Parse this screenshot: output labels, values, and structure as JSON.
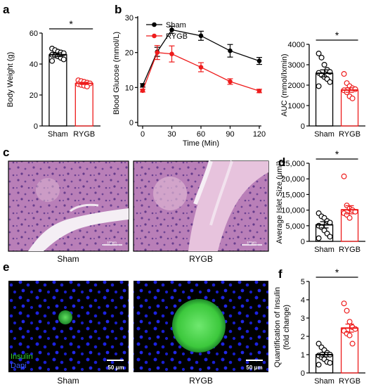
{
  "panels": {
    "a": {
      "letter": "a"
    },
    "b": {
      "letter": "b"
    },
    "c": {
      "letter": "c",
      "captions": [
        "Sham",
        "RYGB"
      ],
      "scalebar": "100μm"
    },
    "d": {
      "letter": "d"
    },
    "e": {
      "letter": "e",
      "captions": [
        "Sham",
        "RYGB"
      ],
      "legend": [
        "Insulin",
        "Dapi"
      ],
      "scalebar": "50 μm"
    },
    "f": {
      "letter": "f"
    }
  },
  "colors": {
    "sham": "#000000",
    "rygb": "#ee1c1c"
  },
  "significance": "*",
  "chart_data": [
    {
      "id": "a",
      "type": "bar",
      "categories": [
        "Sham",
        "RYGB"
      ],
      "values": [
        46,
        27.5
      ],
      "errors": [
        1.2,
        0.7
      ],
      "points": [
        [
          50,
          49,
          48,
          47.5,
          47,
          46,
          45.5,
          45,
          44,
          43,
          42
        ],
        [
          29.5,
          29,
          28.5,
          28,
          27.5,
          27,
          26.5,
          26,
          25.5
        ]
      ],
      "ylabel": "Body Weight  (g)",
      "ylim": [
        0,
        60
      ],
      "yticks": [
        0,
        20,
        40,
        60
      ],
      "significance": "*"
    },
    {
      "id": "b1",
      "type": "line",
      "x": [
        0,
        15,
        30,
        60,
        90,
        120
      ],
      "series": [
        {
          "name": "Sham",
          "values": [
            10.6,
            20.2,
            26.5,
            24.8,
            20.5,
            17.6
          ],
          "errors": [
            0.5,
            1.3,
            1.0,
            1.3,
            1.8,
            1.0
          ]
        },
        {
          "name": "RYGB",
          "values": [
            9.1,
            20.0,
            19.6,
            15.8,
            11.7,
            9.0
          ],
          "errors": [
            0.4,
            2.0,
            2.3,
            1.3,
            0.8,
            0.5
          ]
        }
      ],
      "xlabel": "Time (Min)",
      "ylabel": "Blood Glucose (mmol/L)",
      "xlim": [
        0,
        120
      ],
      "ylim": [
        0,
        30
      ],
      "yticks": [
        0,
        10,
        20,
        30
      ],
      "xticks": [
        0,
        30,
        60,
        90,
        120
      ],
      "legend": "top-left"
    },
    {
      "id": "b2",
      "type": "bar",
      "categories": [
        "Sham",
        "RYGB"
      ],
      "values": [
        2580,
        1760
      ],
      "errors": [
        170,
        110
      ],
      "points": [
        [
          3550,
          3350,
          3000,
          2750,
          2650,
          2600,
          2500,
          2400,
          2300,
          2150,
          1950
        ],
        [
          2550,
          2100,
          1950,
          1850,
          1800,
          1750,
          1650,
          1450,
          1350
        ]
      ],
      "ylabel": "AUC (mmol/lxmin)",
      "ylim": [
        0,
        4000
      ],
      "yticks": [
        0,
        1000,
        2000,
        3000,
        4000
      ],
      "significance": "*"
    },
    {
      "id": "d",
      "type": "bar",
      "categories": [
        "Sham",
        "RYGB"
      ],
      "values": [
        5300,
        10100
      ],
      "errors": [
        1000,
        1300
      ],
      "points": [
        [
          9000,
          8000,
          7500,
          6500,
          6000,
          5000,
          4500,
          3500,
          2500,
          1500,
          1000
        ],
        [
          20800,
          11500,
          10500,
          10000,
          9500,
          9000,
          8500,
          7500
        ]
      ],
      "ylabel": "Average Islet Size (μm²)",
      "ylim": [
        0,
        25000
      ],
      "yticks": [
        0,
        5000,
        10000,
        15000,
        20000,
        25000
      ],
      "yticklabels": [
        "0",
        "5,000",
        "10,000",
        "15,000",
        "20,000",
        "25,000"
      ],
      "significance": "*"
    },
    {
      "id": "f",
      "type": "bar",
      "categories": [
        "Sham",
        "RYGB"
      ],
      "values": [
        1.0,
        2.45
      ],
      "errors": [
        0.12,
        0.22
      ],
      "points": [
        [
          1.6,
          1.4,
          1.25,
          1.1,
          1.0,
          0.95,
          0.85,
          0.75,
          0.6,
          0.55,
          0.45
        ],
        [
          3.8,
          3.4,
          2.8,
          2.5,
          2.4,
          2.3,
          2.15,
          2.05,
          1.6
        ]
      ],
      "ylabel": "Quantification of Insulin\n(fold change)",
      "ylim": [
        0,
        5
      ],
      "yticks": [
        0,
        1,
        2,
        3,
        4,
        5
      ],
      "significance": "*"
    }
  ]
}
